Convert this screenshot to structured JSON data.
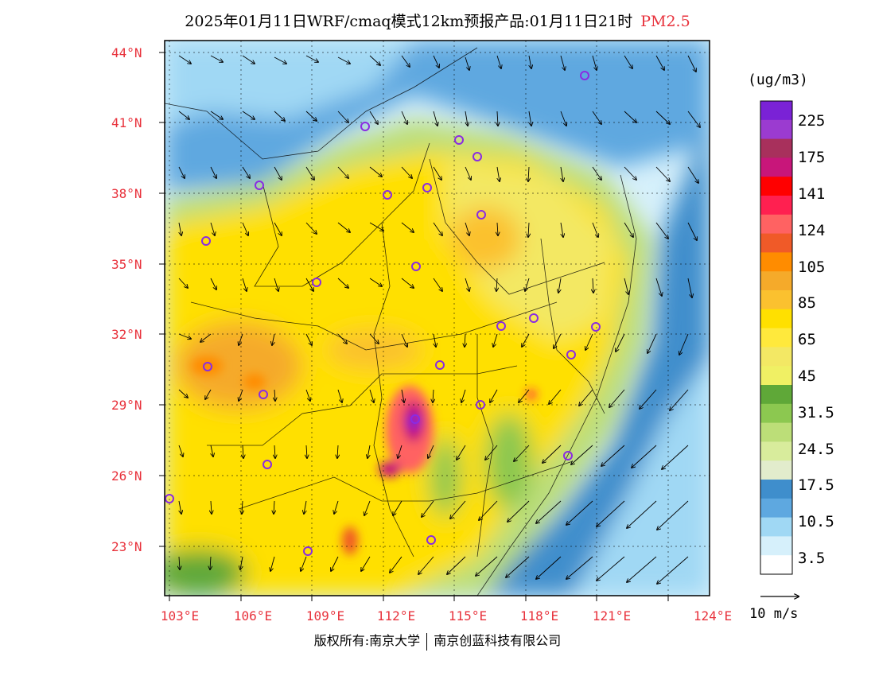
{
  "title": {
    "main": "2025年01月11日WRF/cmaq模式12km预报产品:01月11日21时",
    "pollutant": "PM2.5"
  },
  "map": {
    "lat_labels": [
      "44°N",
      "41°N",
      "38°N",
      "35°N",
      "32°N",
      "29°N",
      "26°N",
      "23°N"
    ],
    "lon_labels": [
      "103°E",
      "106°E",
      "109°E",
      "112°E",
      "115°E",
      "118°E",
      "121°E",
      "124°E"
    ]
  },
  "colorbar": {
    "unit": "(ug/m3)",
    "labels": [
      "225",
      "175",
      "141",
      "124",
      "105",
      "85",
      "65",
      "45",
      "31.5",
      "24.5",
      "17.5",
      "10.5",
      "3.5"
    ],
    "colors": [
      "#7a22d6",
      "#9b3bd0",
      "#a8305c",
      "#c8167a",
      "#ff0000",
      "#ff2050",
      "#ff6262",
      "#f05a28",
      "#ff8c00",
      "#f5aa2a",
      "#fbc12f",
      "#ffe000",
      "#ffe93c",
      "#f3e864",
      "#f0f064",
      "#5fa838",
      "#8cc850",
      "#bcde78",
      "#d8ec9c",
      "#e2eccc",
      "#3f8ecc",
      "#5ea8e0",
      "#a0d8f4",
      "#d6f0fb",
      "#ffffff"
    ]
  },
  "wind_reference": "10 m/s",
  "copyright": {
    "left": "版权所有:南京大学",
    "right": "南京创蓝科技有限公司"
  }
}
